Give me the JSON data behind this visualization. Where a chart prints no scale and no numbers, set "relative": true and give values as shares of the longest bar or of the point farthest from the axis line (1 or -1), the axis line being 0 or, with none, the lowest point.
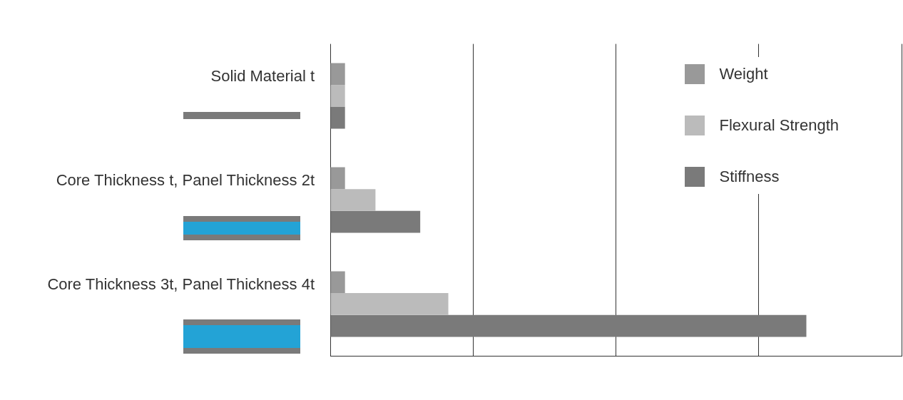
{
  "chart_data": {
    "type": "bar",
    "orientation": "horizontal",
    "relative": true,
    "categories": [
      "Solid Material t",
      "Core Thickness t, Panel Thickness 2t",
      "Core Thickness 3t, Panel Thickness 4t"
    ],
    "series": [
      {
        "name": "Weight",
        "color": "#999999",
        "values": [
          0.031,
          0.031,
          0.031
        ]
      },
      {
        "name": "Flexural Strength",
        "color": "#bbbbbb",
        "values": [
          0.031,
          0.095,
          0.248
        ]
      },
      {
        "name": "Stiffness",
        "color": "#7a7a7a",
        "values": [
          0.031,
          0.189,
          1
        ]
      }
    ],
    "grid": "x",
    "legend": "top right"
  }
}
